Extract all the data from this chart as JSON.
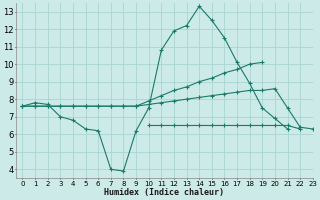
{
  "bg_color": "#cceae7",
  "grid_color": "#aad4d0",
  "line_color": "#1a7a6a",
  "xlabel": "Humidex (Indice chaleur)",
  "xlim": [
    -0.5,
    23
  ],
  "ylim": [
    3.5,
    13.5
  ],
  "yticks": [
    4,
    5,
    6,
    7,
    8,
    9,
    10,
    11,
    12,
    13
  ],
  "xticks": [
    0,
    1,
    2,
    3,
    4,
    5,
    6,
    7,
    8,
    9,
    10,
    11,
    12,
    13,
    14,
    15,
    16,
    17,
    18,
    19,
    20,
    21,
    22,
    23
  ],
  "series": [
    {
      "x": [
        0,
        1,
        2,
        3,
        4,
        5,
        6,
        7,
        8,
        9,
        10,
        11,
        12,
        13,
        14,
        15,
        16,
        17,
        18,
        19,
        20,
        21
      ],
      "y": [
        7.6,
        7.8,
        7.7,
        7.0,
        6.8,
        6.3,
        6.2,
        4.0,
        3.9,
        6.2,
        7.5,
        10.8,
        11.9,
        12.2,
        13.3,
        12.5,
        11.5,
        10.1,
        8.9,
        7.5,
        6.9,
        6.3
      ]
    },
    {
      "x": [
        0,
        1,
        2,
        3,
        4,
        5,
        6,
        7,
        8,
        9,
        10,
        11,
        12,
        13,
        14,
        15,
        16,
        17,
        18,
        19
      ],
      "y": [
        7.6,
        7.6,
        7.6,
        7.6,
        7.6,
        7.6,
        7.6,
        7.6,
        7.6,
        7.6,
        7.9,
        8.2,
        8.5,
        8.7,
        9.0,
        9.2,
        9.5,
        9.7,
        10.0,
        10.1
      ]
    },
    {
      "x": [
        0,
        1,
        2,
        3,
        4,
        5,
        6,
        7,
        8,
        9,
        10,
        11,
        12,
        13,
        14,
        15,
        16,
        17,
        18,
        19,
        20,
        21,
        22,
        23
      ],
      "y": [
        7.6,
        7.6,
        7.6,
        7.6,
        7.6,
        7.6,
        7.6,
        7.6,
        7.6,
        7.6,
        7.7,
        7.8,
        7.9,
        8.0,
        8.1,
        8.2,
        8.3,
        8.4,
        8.5,
        8.5,
        8.6,
        7.5,
        6.4,
        6.3
      ]
    },
    {
      "x": [
        10,
        11,
        12,
        13,
        14,
        15,
        16,
        17,
        18,
        19,
        20,
        21,
        22
      ],
      "y": [
        6.5,
        6.5,
        6.5,
        6.5,
        6.5,
        6.5,
        6.5,
        6.5,
        6.5,
        6.5,
        6.5,
        6.5,
        6.3
      ]
    }
  ]
}
